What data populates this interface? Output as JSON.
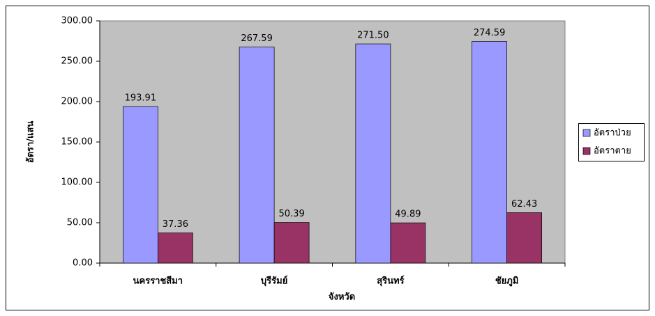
{
  "chart_data": {
    "type": "bar",
    "x_label": "จังหวัด",
    "y_label": "อัตรา/แสน",
    "categories": [
      "นครราชสีมา",
      "บุรีรัมย์",
      "สุรินทร์",
      "ชัยภูมิ"
    ],
    "series": [
      {
        "name": "อัตราป่วย",
        "color": "#9999ff",
        "values": [
          193.91,
          267.59,
          271.5,
          274.59
        ],
        "value_labels": [
          "193.91",
          "267.59",
          "271.50",
          "274.59"
        ]
      },
      {
        "name": "อัตราตาย",
        "color": "#993366",
        "values": [
          37.36,
          50.39,
          49.89,
          62.43
        ],
        "value_labels": [
          "37.36",
          "50.39",
          "49.89",
          "62.43"
        ]
      }
    ],
    "ylim": [
      0,
      300
    ],
    "yticks": [
      {
        "value": 0,
        "label": "0.00"
      },
      {
        "value": 50,
        "label": "50.00"
      },
      {
        "value": 100,
        "label": "100.00"
      },
      {
        "value": 150,
        "label": "150.00"
      },
      {
        "value": 200,
        "label": "200.00"
      },
      {
        "value": 250,
        "label": "250.00"
      },
      {
        "value": 300,
        "label": "300.00"
      }
    ],
    "grid": false,
    "legend": "right",
    "plot_background": "#c0c0c0"
  }
}
